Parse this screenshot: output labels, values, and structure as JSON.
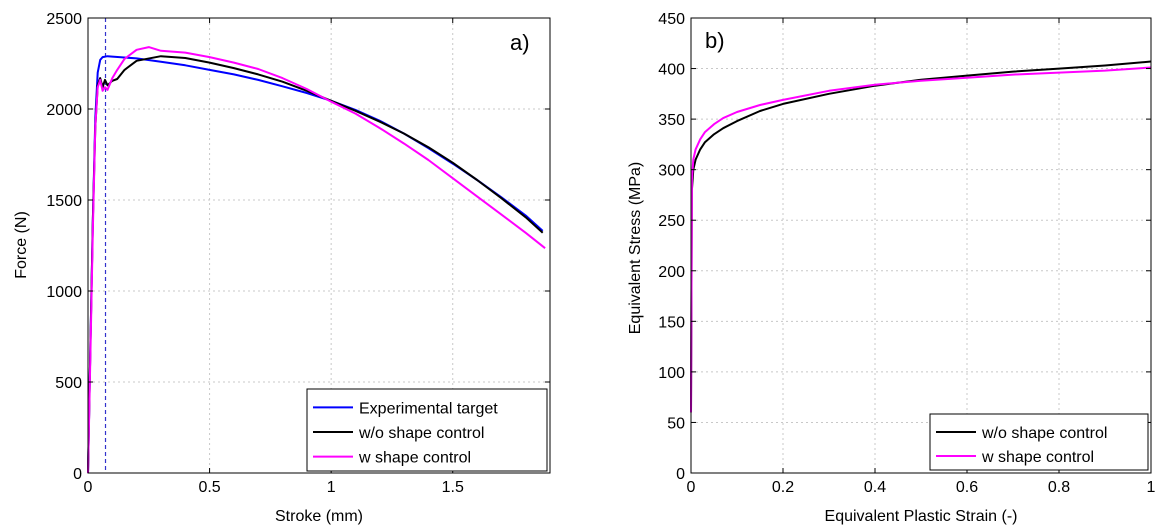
{
  "colors": {
    "blue": "#0000ff",
    "black": "#000000",
    "magenta": "#ff00ff",
    "grid": "#c8c8c8",
    "dash": "#3333cc"
  },
  "chart_data": [
    {
      "panel_label": "a)",
      "type": "line",
      "xlabel": "Stroke (mm)",
      "ylabel": "Force (N)",
      "xlim": [
        0,
        1.9
      ],
      "ylim": [
        0,
        2500
      ],
      "xticks": [
        0,
        0.5,
        1,
        1.5
      ],
      "xtick_labels": [
        "0",
        "0.5",
        "1",
        "1.5"
      ],
      "yticks": [
        0,
        500,
        1000,
        1500,
        2000,
        2500
      ],
      "ytick_labels": [
        "0",
        "500",
        "1000",
        "1500",
        "2000",
        "2500"
      ],
      "grid": true,
      "legend_position": "bottom-right",
      "vline": {
        "x": 0.072,
        "style": "dashed",
        "color": "#3333cc"
      },
      "series": [
        {
          "name": "Experimental target",
          "color": "#0000ff",
          "x": [
            0,
            0.01,
            0.02,
            0.03,
            0.04,
            0.05,
            0.06,
            0.08,
            0.1,
            0.2,
            0.3,
            0.4,
            0.5,
            0.6,
            0.7,
            0.8,
            0.9,
            1.0,
            1.1,
            1.2,
            1.3,
            1.4,
            1.5,
            1.6,
            1.7,
            1.8,
            1.87
          ],
          "y": [
            0,
            700,
            1400,
            1950,
            2200,
            2270,
            2285,
            2290,
            2288,
            2278,
            2260,
            2240,
            2215,
            2190,
            2160,
            2125,
            2088,
            2045,
            1995,
            1935,
            1865,
            1785,
            1700,
            1610,
            1515,
            1415,
            1330
          ]
        },
        {
          "name": "w/o shape control",
          "color": "#000000",
          "x": [
            0,
            0.01,
            0.02,
            0.03,
            0.04,
            0.05,
            0.06,
            0.07,
            0.08,
            0.1,
            0.12,
            0.15,
            0.2,
            0.3,
            0.4,
            0.5,
            0.6,
            0.7,
            0.8,
            0.9,
            1.0,
            1.1,
            1.2,
            1.3,
            1.4,
            1.5,
            1.6,
            1.7,
            1.8,
            1.87
          ],
          "y": [
            0,
            700,
            1400,
            1900,
            2130,
            2170,
            2120,
            2160,
            2130,
            2155,
            2165,
            2215,
            2265,
            2290,
            2280,
            2255,
            2225,
            2190,
            2150,
            2100,
            2045,
            1990,
            1930,
            1865,
            1790,
            1705,
            1610,
            1510,
            1405,
            1320
          ]
        },
        {
          "name": "w shape control",
          "color": "#ff00ff",
          "x": [
            0,
            0.01,
            0.02,
            0.03,
            0.04,
            0.05,
            0.06,
            0.07,
            0.08,
            0.1,
            0.12,
            0.15,
            0.2,
            0.25,
            0.3,
            0.4,
            0.5,
            0.6,
            0.7,
            0.8,
            0.9,
            1.0,
            1.1,
            1.2,
            1.3,
            1.4,
            1.5,
            1.6,
            1.7,
            1.8,
            1.88
          ],
          "y": [
            0,
            650,
            1350,
            1900,
            2120,
            2160,
            2100,
            2120,
            2105,
            2170,
            2215,
            2275,
            2325,
            2340,
            2320,
            2310,
            2285,
            2255,
            2220,
            2170,
            2110,
            2040,
            1975,
            1895,
            1810,
            1720,
            1620,
            1520,
            1420,
            1320,
            1235
          ]
        }
      ]
    },
    {
      "panel_label": "b)",
      "type": "line",
      "xlabel": "Equivalent Plastic Strain (-)",
      "ylabel": "Equivalent Stress (MPa)",
      "xlim": [
        0,
        1
      ],
      "ylim": [
        0,
        450
      ],
      "xticks": [
        0,
        0.2,
        0.4,
        0.6,
        0.8,
        1
      ],
      "xtick_labels": [
        "0",
        "0.2",
        "0.4",
        "0.6",
        "0.8",
        "1"
      ],
      "yticks": [
        0,
        50,
        100,
        150,
        200,
        250,
        300,
        350,
        400,
        450
      ],
      "ytick_labels": [
        "0",
        "50",
        "100",
        "150",
        "200",
        "250",
        "300",
        "350",
        "400",
        "450"
      ],
      "grid": true,
      "legend_position": "bottom-right",
      "series": [
        {
          "name": "w/o shape control",
          "color": "#000000",
          "x": [
            0,
            0.002,
            0.005,
            0.01,
            0.02,
            0.03,
            0.05,
            0.07,
            0.1,
            0.15,
            0.2,
            0.3,
            0.4,
            0.5,
            0.6,
            0.7,
            0.8,
            0.9,
            1.0
          ],
          "y": [
            60,
            280,
            300,
            310,
            320,
            327,
            335,
            341,
            348,
            358,
            365,
            375,
            383,
            389,
            393,
            397,
            400,
            403,
            407
          ]
        },
        {
          "name": "w shape control",
          "color": "#ff00ff",
          "x": [
            0,
            0.002,
            0.005,
            0.01,
            0.02,
            0.03,
            0.05,
            0.07,
            0.1,
            0.15,
            0.2,
            0.3,
            0.4,
            0.5,
            0.6,
            0.7,
            0.8,
            0.9,
            1.0
          ],
          "y": [
            60,
            290,
            310,
            320,
            330,
            337,
            345,
            351,
            357,
            364,
            369,
            378,
            384,
            388,
            391,
            394,
            396,
            398,
            401
          ]
        }
      ]
    }
  ]
}
